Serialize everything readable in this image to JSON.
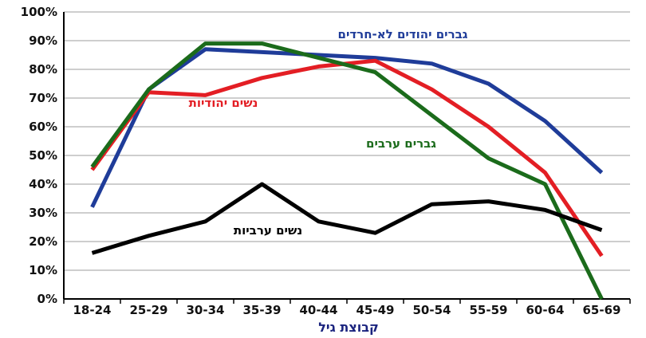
{
  "chart_data": {
    "type": "line",
    "categories": [
      "18-24",
      "25-29",
      "30-34",
      "35-39",
      "40-44",
      "45-49",
      "50-54",
      "55-59",
      "60-64",
      "65-69"
    ],
    "yticks": [
      "0%",
      "10%",
      "20%",
      "30%",
      "40%",
      "50%",
      "60%",
      "70%",
      "80%",
      "90%",
      "100%"
    ],
    "ylim": [
      0,
      100
    ],
    "xlabel": "קבוצת גיל",
    "ylabel": "",
    "title": "",
    "grid": true,
    "colors": {
      "grid": "#bdbdbd",
      "axis": "#000000",
      "xlabel": "#1a237e"
    },
    "series": [
      {
        "name": "גברים יהודים לא-חרדים",
        "color": "#1f3c99",
        "values": [
          32,
          73,
          87,
          86,
          85,
          84,
          82,
          75,
          62,
          44
        ]
      },
      {
        "name": "נשים יהודיות",
        "color": "#e31e24",
        "values": [
          45,
          72,
          71,
          77,
          81,
          83,
          73,
          60,
          44,
          15
        ]
      },
      {
        "name": "גברים ערבים",
        "color": "#1b6b1b",
        "values": [
          46,
          73,
          89,
          89,
          84,
          79,
          64,
          49,
          40,
          0
        ]
      },
      {
        "name": "נשים ערביות",
        "color": "#000000",
        "values": [
          16,
          22,
          27,
          40,
          27,
          23,
          33,
          34,
          31,
          24
        ]
      }
    ]
  }
}
